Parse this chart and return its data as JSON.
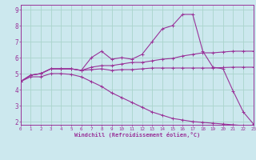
{
  "xlabel": "Windchill (Refroidissement éolien,°C)",
  "bg_color": "#cce8ee",
  "grid_color": "#aad4cc",
  "line_color": "#993399",
  "x_ticks": [
    0,
    1,
    2,
    3,
    4,
    5,
    6,
    7,
    8,
    9,
    10,
    11,
    12,
    13,
    14,
    15,
    16,
    17,
    18,
    19,
    20,
    21,
    22,
    23
  ],
  "y_ticks": [
    2,
    3,
    4,
    5,
    6,
    7,
    8,
    9
  ],
  "xlim": [
    0,
    23
  ],
  "ylim": [
    1.8,
    9.3
  ],
  "series1_x": [
    0,
    1,
    2,
    3,
    4,
    5,
    6,
    7,
    8,
    9,
    10,
    11,
    12,
    13,
    14,
    15,
    16,
    17,
    18,
    19,
    20,
    21,
    22,
    23
  ],
  "series1_y": [
    4.5,
    4.9,
    5.0,
    5.3,
    5.3,
    5.3,
    5.2,
    6.0,
    6.4,
    5.9,
    6.0,
    5.9,
    6.2,
    7.0,
    7.8,
    8.0,
    8.7,
    8.7,
    6.4,
    5.4,
    5.3,
    3.9,
    2.6,
    1.85
  ],
  "series2_x": [
    0,
    1,
    2,
    3,
    4,
    5,
    6,
    7,
    8,
    9,
    10,
    11,
    12,
    13,
    14,
    15,
    16,
    17,
    18,
    19,
    20,
    21,
    22,
    23
  ],
  "series2_y": [
    4.5,
    4.9,
    5.0,
    5.3,
    5.3,
    5.3,
    5.2,
    5.4,
    5.5,
    5.5,
    5.6,
    5.7,
    5.7,
    5.8,
    5.9,
    5.95,
    6.1,
    6.2,
    6.3,
    6.3,
    6.35,
    6.4,
    6.4,
    6.4
  ],
  "series3_x": [
    0,
    1,
    2,
    3,
    4,
    5,
    6,
    7,
    8,
    9,
    10,
    11,
    12,
    13,
    14,
    15,
    16,
    17,
    18,
    19,
    20,
    21,
    22,
    23
  ],
  "series3_y": [
    4.5,
    4.9,
    5.0,
    5.3,
    5.3,
    5.3,
    5.2,
    5.25,
    5.3,
    5.2,
    5.25,
    5.25,
    5.3,
    5.35,
    5.35,
    5.35,
    5.35,
    5.35,
    5.35,
    5.35,
    5.38,
    5.4,
    5.4,
    5.4
  ],
  "series4_x": [
    0,
    1,
    2,
    3,
    4,
    5,
    6,
    7,
    8,
    9,
    10,
    11,
    12,
    13,
    14,
    15,
    16,
    17,
    18,
    19,
    20,
    21,
    22,
    23
  ],
  "series4_y": [
    4.5,
    4.8,
    4.8,
    5.0,
    5.0,
    4.95,
    4.8,
    4.5,
    4.2,
    3.8,
    3.5,
    3.2,
    2.9,
    2.6,
    2.4,
    2.2,
    2.1,
    2.0,
    1.95,
    1.9,
    1.85,
    1.8,
    1.75,
    1.72
  ]
}
